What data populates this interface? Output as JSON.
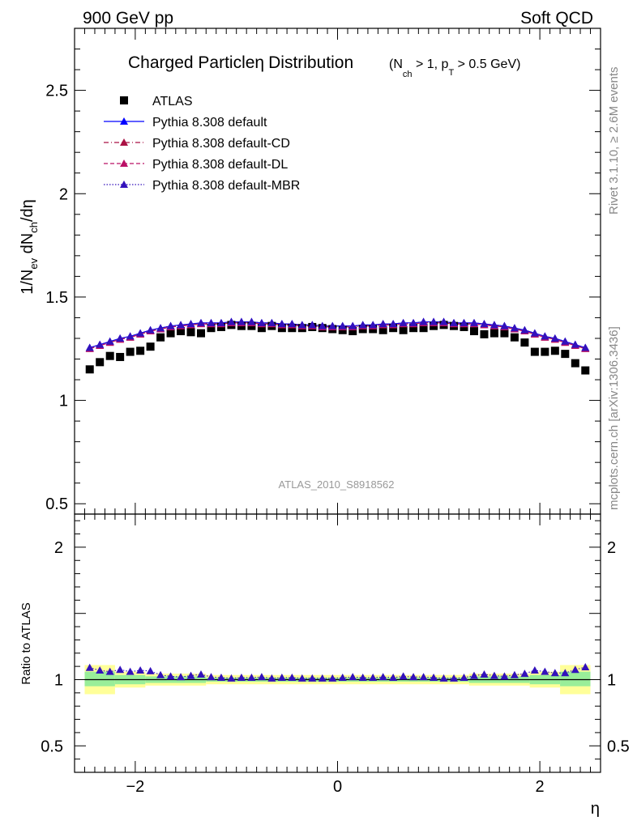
{
  "header": {
    "left": "900 GeV pp",
    "right": "Soft QCD"
  },
  "side_labels": {
    "rivet": "Rivet 3.1.10, ≥ 2.6M events",
    "mcplots": "mcplots.cern.ch [arXiv:1306.3436]"
  },
  "chart_data": [
    {
      "type": "scatter",
      "title": "Charged Particle η Distribution",
      "title_condition": "(N_ch > 1, p_T > 0.5 GeV)",
      "ylabel": "1/N_ev dN_ch/dη",
      "xlabel": "η",
      "watermark": "ATLAS_2010_S8918562",
      "xlim": [
        -2.6,
        2.6
      ],
      "ylim": [
        0.45,
        2.8
      ],
      "yticks": [
        "0.5",
        "1",
        "1.5",
        "2",
        "2.5"
      ],
      "legend_position": "top-left",
      "x": [
        -2.45,
        -2.35,
        -2.25,
        -2.15,
        -2.05,
        -1.95,
        -1.85,
        -1.75,
        -1.65,
        -1.55,
        -1.45,
        -1.35,
        -1.25,
        -1.15,
        -1.05,
        -0.95,
        -0.85,
        -0.75,
        -0.65,
        -0.55,
        -0.45,
        -0.35,
        -0.25,
        -0.15,
        -0.05,
        0.05,
        0.15,
        0.25,
        0.35,
        0.45,
        0.55,
        0.65,
        0.75,
        0.85,
        0.95,
        1.05,
        1.15,
        1.25,
        1.35,
        1.45,
        1.55,
        1.65,
        1.75,
        1.85,
        1.95,
        2.05,
        2.15,
        2.25,
        2.35,
        2.45
      ],
      "series": [
        {
          "name": "ATLAS",
          "color": "#000000",
          "marker": "square",
          "values": [
            1.15,
            1.185,
            1.215,
            1.21,
            1.235,
            1.24,
            1.26,
            1.305,
            1.325,
            1.335,
            1.33,
            1.325,
            1.35,
            1.355,
            1.365,
            1.36,
            1.36,
            1.35,
            1.36,
            1.35,
            1.35,
            1.35,
            1.355,
            1.35,
            1.345,
            1.34,
            1.335,
            1.345,
            1.345,
            1.34,
            1.35,
            1.34,
            1.35,
            1.35,
            1.36,
            1.365,
            1.36,
            1.355,
            1.335,
            1.32,
            1.325,
            1.325,
            1.305,
            1.28,
            1.235,
            1.235,
            1.24,
            1.225,
            1.18,
            1.145
          ]
        },
        {
          "name": "Pythia 8.308 default",
          "color": "#0000ff",
          "marker": "triangle",
          "line": "solid",
          "values": [
            1.255,
            1.27,
            1.285,
            1.3,
            1.31,
            1.325,
            1.34,
            1.35,
            1.36,
            1.365,
            1.37,
            1.375,
            1.375,
            1.375,
            1.38,
            1.38,
            1.38,
            1.375,
            1.375,
            1.37,
            1.37,
            1.365,
            1.365,
            1.36,
            1.36,
            1.36,
            1.36,
            1.365,
            1.365,
            1.37,
            1.37,
            1.375,
            1.375,
            1.38,
            1.38,
            1.38,
            1.375,
            1.375,
            1.375,
            1.37,
            1.365,
            1.36,
            1.35,
            1.34,
            1.325,
            1.31,
            1.3,
            1.285,
            1.27,
            1.255
          ]
        },
        {
          "name": "Pythia 8.308 default-CD",
          "color": "#aa1144",
          "marker": "triangle",
          "line": "dashdot",
          "values": [
            1.25,
            1.265,
            1.28,
            1.295,
            1.305,
            1.32,
            1.335,
            1.345,
            1.355,
            1.36,
            1.365,
            1.37,
            1.37,
            1.37,
            1.375,
            1.375,
            1.375,
            1.37,
            1.37,
            1.365,
            1.365,
            1.36,
            1.36,
            1.355,
            1.355,
            1.355,
            1.355,
            1.36,
            1.36,
            1.365,
            1.365,
            1.37,
            1.37,
            1.375,
            1.375,
            1.375,
            1.37,
            1.37,
            1.37,
            1.365,
            1.36,
            1.355,
            1.345,
            1.335,
            1.32,
            1.305,
            1.295,
            1.28,
            1.265,
            1.25
          ]
        },
        {
          "name": "Pythia 8.308 default-DL",
          "color": "#bb1166",
          "marker": "triangle",
          "line": "dashed",
          "values": [
            1.25,
            1.265,
            1.28,
            1.295,
            1.305,
            1.32,
            1.335,
            1.345,
            1.355,
            1.36,
            1.365,
            1.37,
            1.37,
            1.37,
            1.375,
            1.375,
            1.375,
            1.37,
            1.37,
            1.365,
            1.365,
            1.36,
            1.36,
            1.355,
            1.355,
            1.355,
            1.355,
            1.36,
            1.36,
            1.365,
            1.365,
            1.37,
            1.37,
            1.375,
            1.375,
            1.375,
            1.37,
            1.37,
            1.37,
            1.365,
            1.36,
            1.355,
            1.345,
            1.335,
            1.32,
            1.305,
            1.295,
            1.28,
            1.265,
            1.25
          ]
        },
        {
          "name": "Pythia 8.308 default-MBR",
          "color": "#3311bb",
          "marker": "triangle",
          "line": "dotted",
          "values": [
            1.255,
            1.27,
            1.285,
            1.3,
            1.31,
            1.325,
            1.34,
            1.35,
            1.36,
            1.365,
            1.37,
            1.375,
            1.375,
            1.375,
            1.38,
            1.38,
            1.38,
            1.375,
            1.375,
            1.37,
            1.37,
            1.365,
            1.365,
            1.36,
            1.36,
            1.36,
            1.36,
            1.365,
            1.365,
            1.37,
            1.37,
            1.375,
            1.375,
            1.38,
            1.38,
            1.38,
            1.375,
            1.375,
            1.375,
            1.37,
            1.365,
            1.36,
            1.35,
            1.34,
            1.325,
            1.31,
            1.3,
            1.285,
            1.27,
            1.255
          ]
        }
      ]
    },
    {
      "type": "scatter",
      "ylabel": "Ratio to ATLAS",
      "xlabel": "η",
      "xlim": [
        -2.6,
        2.6
      ],
      "ylim": [
        0.3,
        2.25
      ],
      "yticks": [
        "0.5",
        "1",
        "2"
      ],
      "xticks": [
        "−2",
        "0",
        "2"
      ],
      "bands": [
        {
          "x_from": -2.5,
          "x_to": -2.2,
          "yellow": [
            0.89,
            1.11
          ],
          "green": [
            0.95,
            1.06
          ]
        },
        {
          "x_from": -2.2,
          "x_to": -1.9,
          "yellow": [
            0.94,
            1.06
          ],
          "green": [
            0.965,
            1.035
          ]
        },
        {
          "x_from": -1.9,
          "x_to": -1.3,
          "yellow": [
            0.955,
            1.045
          ],
          "green": [
            0.975,
            1.025
          ]
        },
        {
          "x_from": -1.3,
          "x_to": 1.3,
          "yellow": [
            0.965,
            1.035
          ],
          "green": [
            0.985,
            1.015
          ]
        },
        {
          "x_from": 1.3,
          "x_to": 1.9,
          "yellow": [
            0.955,
            1.045
          ],
          "green": [
            0.975,
            1.025
          ]
        },
        {
          "x_from": 1.9,
          "x_to": 2.2,
          "yellow": [
            0.94,
            1.06
          ],
          "green": [
            0.965,
            1.035
          ]
        },
        {
          "x_from": 2.2,
          "x_to": 2.5,
          "yellow": [
            0.89,
            1.11
          ],
          "green": [
            0.95,
            1.06
          ]
        }
      ],
      "ratio_values": [
        1.09,
        1.07,
        1.06,
        1.075,
        1.06,
        1.07,
        1.065,
        1.035,
        1.025,
        1.02,
        1.03,
        1.04,
        1.02,
        1.015,
        1.01,
        1.015,
        1.015,
        1.02,
        1.01,
        1.015,
        1.015,
        1.01,
        1.01,
        1.01,
        1.01,
        1.015,
        1.02,
        1.015,
        1.015,
        1.02,
        1.015,
        1.025,
        1.02,
        1.02,
        1.015,
        1.01,
        1.01,
        1.015,
        1.03,
        1.04,
        1.03,
        1.025,
        1.035,
        1.045,
        1.07,
        1.06,
        1.05,
        1.05,
        1.075,
        1.095
      ]
    }
  ]
}
